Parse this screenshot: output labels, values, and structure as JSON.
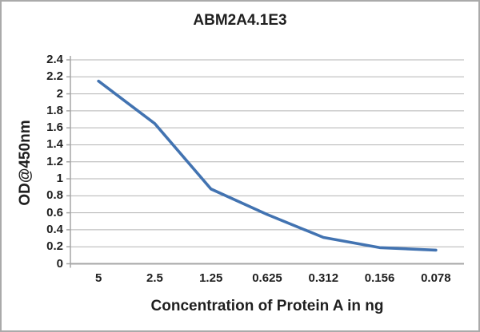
{
  "chart_data": {
    "type": "line",
    "title": "ABM2A4.1E3",
    "xlabel": "Concentration of Protein A in ng",
    "ylabel": "OD@450nm",
    "categories": [
      "5",
      "2.5",
      "1.25",
      "0.625",
      "0.312",
      "0.156",
      "0.078"
    ],
    "values": [
      2.15,
      1.65,
      0.88,
      0.58,
      0.31,
      0.19,
      0.16
    ],
    "ylim": [
      0,
      2.4
    ],
    "y_tick_step": 0.2,
    "y_tick_labels": [
      "0",
      "0.2",
      "0.4",
      "0.6",
      "0.8",
      "1",
      "1.2",
      "1.4",
      "1.6",
      "1.8",
      "2",
      "2.2",
      "2.4"
    ],
    "grid": "horizontal",
    "legend": "none",
    "colors": {
      "line": "#4273b1",
      "gridline": "#b3b3b3",
      "axis": "#a6a6a6",
      "text": "#1f1f1f",
      "frame_border": "#aaaaaa",
      "background": "#ffffff"
    }
  }
}
